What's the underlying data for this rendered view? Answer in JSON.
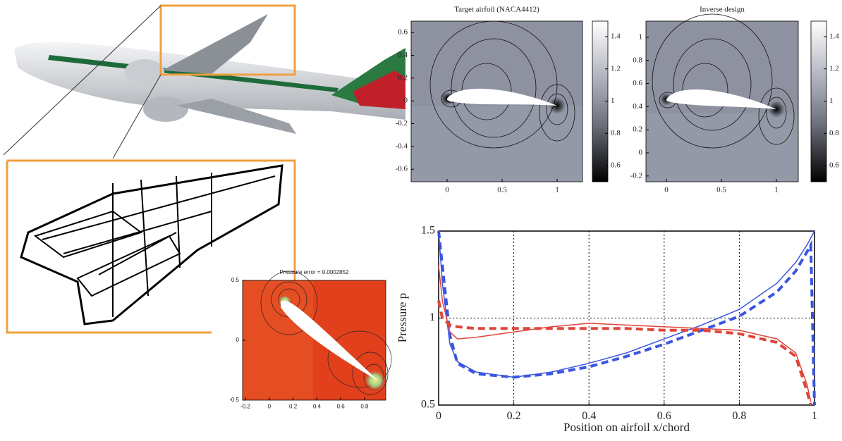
{
  "chart_data": [
    {
      "type": "contour",
      "title": "Target airfoil (NACA4412)",
      "xlim": [
        -0.327,
        1.23
      ],
      "ylim": [
        -0.71,
        0.7
      ],
      "xticks": [
        0,
        0.5,
        1
      ],
      "yticks": [
        -0.6,
        -0.4,
        -0.2,
        0,
        0.2,
        0.4,
        0.6
      ],
      "clim": [
        0.5,
        1.496
      ],
      "cticks": [
        0.6,
        0.8,
        1,
        1.2,
        1.4
      ]
    },
    {
      "type": "contour",
      "title": "Inverse design",
      "xlim": [
        -0.186,
        1.199
      ],
      "ylim": [
        -0.25,
        1.14
      ],
      "xticks": [
        0,
        0.5,
        1
      ],
      "yticks": [
        -0.2,
        0,
        0.2,
        0.4,
        0.6,
        0.8,
        1
      ],
      "clim": [
        0.5,
        1.496
      ],
      "cticks": [
        0.6,
        0.8,
        1,
        1.2,
        1.4
      ]
    },
    {
      "type": "contour",
      "title": "Pressure error = 0.0002852",
      "xlim": [
        -0.224,
        0.978
      ],
      "ylim": [
        -0.5,
        0.5
      ],
      "xticks": [
        -0.2,
        0,
        0.2,
        0.4,
        0.6,
        0.8
      ],
      "yticks": [
        -0.5,
        0,
        0.5
      ]
    },
    {
      "type": "line",
      "x_label": "Position on airfoil x/chord",
      "y_label": "Pressure p",
      "xlim": [
        0,
        1
      ],
      "ylim": [
        0.5,
        1.5
      ],
      "xticks": [
        0,
        0.2,
        0.4,
        0.6,
        0.8,
        1
      ],
      "yticks": [
        0.5,
        1,
        1.5
      ],
      "grid": true,
      "x": [
        0,
        0.01,
        0.03,
        0.05,
        0.1,
        0.2,
        0.3,
        0.4,
        0.5,
        0.6,
        0.7,
        0.8,
        0.9,
        0.95,
        0.98,
        0.99,
        1
      ],
      "series": [
        {
          "color": "#3a55e0",
          "dash": false,
          "values": [
            1.5,
            1.2,
            0.85,
            0.75,
            0.69,
            0.66,
            0.69,
            0.74,
            0.8,
            0.88,
            0.96,
            1.05,
            1.2,
            1.32,
            1.42,
            1.46,
            1.5
          ]
        },
        {
          "color": "#3a55e0",
          "dash": true,
          "values": [
            1.5,
            1.3,
            0.9,
            0.74,
            0.68,
            0.66,
            0.68,
            0.72,
            0.78,
            0.85,
            0.93,
            1.01,
            1.15,
            1.27,
            1.38,
            1.42,
            0.5
          ]
        },
        {
          "color": "#e0453a",
          "dash": false,
          "values": [
            1.3,
            1.1,
            0.92,
            0.88,
            0.89,
            0.92,
            0.95,
            0.97,
            0.96,
            0.95,
            0.94,
            0.93,
            0.88,
            0.8,
            0.62,
            0.52,
            null
          ]
        },
        {
          "color": "#e0453a",
          "dash": true,
          "values": [
            1.1,
            1.0,
            0.96,
            0.95,
            0.94,
            0.94,
            0.94,
            0.94,
            0.94,
            0.93,
            0.93,
            0.91,
            0.86,
            0.78,
            0.58,
            0.5,
            null
          ]
        }
      ]
    }
  ]
}
